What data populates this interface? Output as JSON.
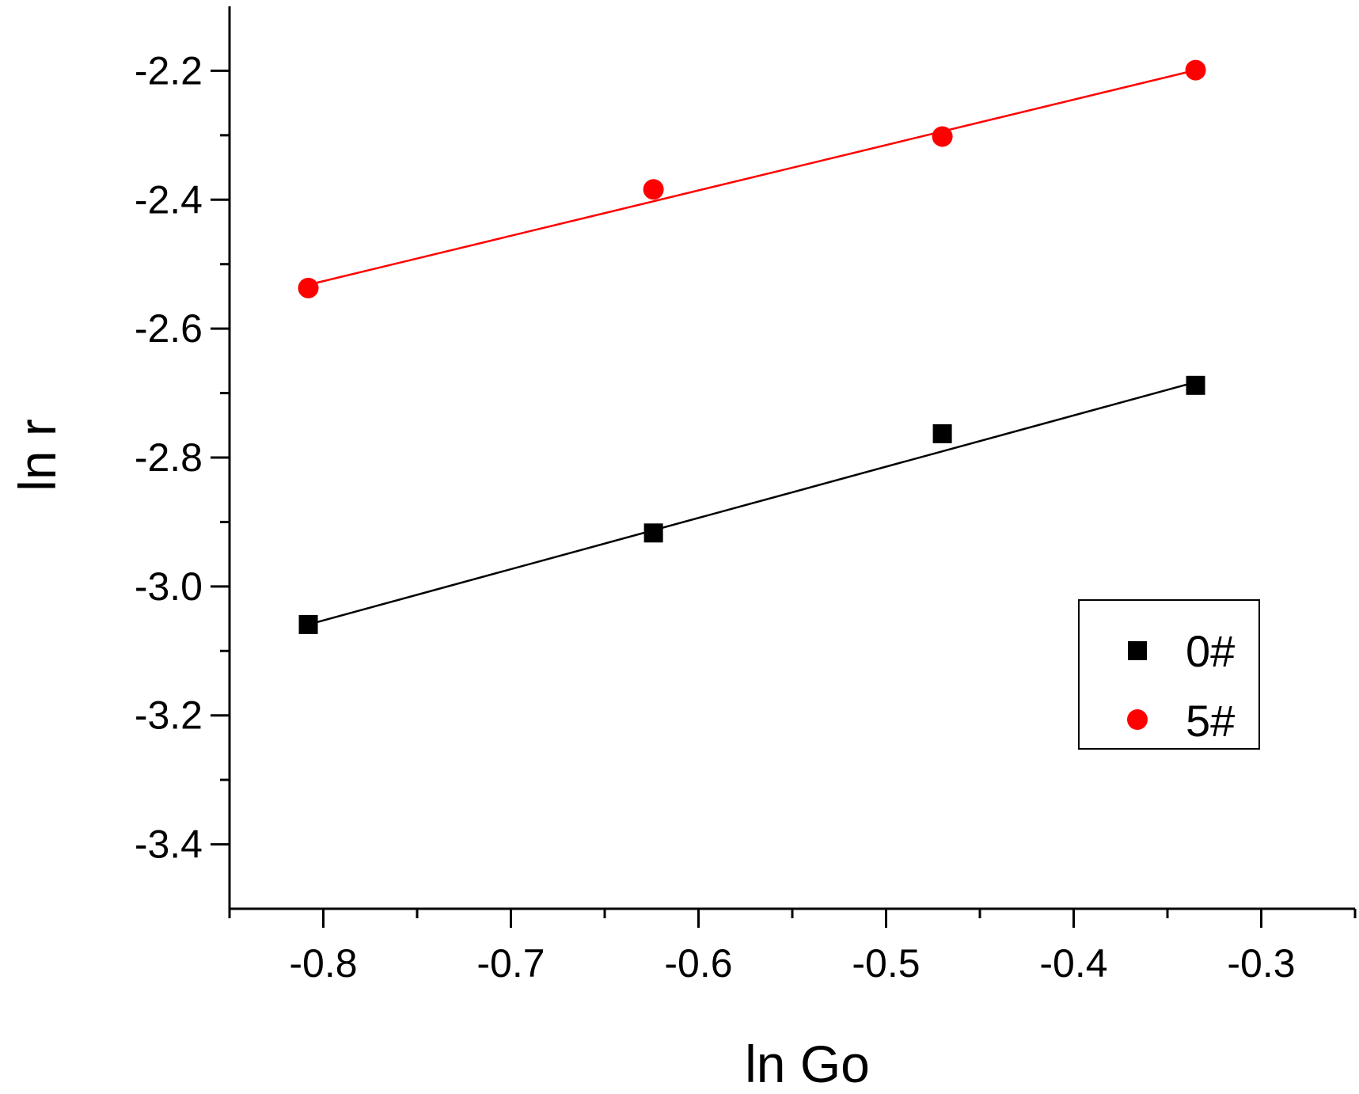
{
  "chart_data": {
    "type": "scatter",
    "title": "",
    "xlabel": "ln Go",
    "ylabel": "ln r",
    "xlim": [
      -0.85,
      -0.25
    ],
    "ylim": [
      -3.5,
      -2.1
    ],
    "xticks": [
      -0.8,
      -0.7,
      -0.6,
      -0.5,
      -0.4,
      -0.3
    ],
    "xtick_labels": [
      "-0.8",
      "-0.7",
      "-0.6",
      "-0.5",
      "-0.4",
      "-0.3"
    ],
    "yticks": [
      -2.2,
      -2.4,
      -2.6,
      -2.8,
      -3.0,
      -3.2,
      -3.4
    ],
    "ytick_labels": [
      "-2.2",
      "-2.4",
      "-2.6",
      "-2.8",
      "-3.0",
      "-3.2",
      "-3.4"
    ],
    "grid": false,
    "legend_position": "lower-right",
    "series": [
      {
        "name": "0#",
        "marker": "square",
        "color": "#000000",
        "x": [
          -0.808,
          -0.624,
          -0.47,
          -0.335
        ],
        "y": [
          -3.059,
          -2.917,
          -2.763,
          -2.688
        ],
        "fit": {
          "x": [
            -0.808,
            -0.335
          ],
          "y": [
            -3.059,
            -2.683
          ]
        }
      },
      {
        "name": "5#",
        "marker": "circle",
        "color": "#ff0000",
        "x": [
          -0.808,
          -0.624,
          -0.47,
          -0.335
        ],
        "y": [
          -2.537,
          -2.384,
          -2.302,
          -2.199
        ],
        "fit": {
          "x": [
            -0.808,
            -0.335
          ],
          "y": [
            -2.532,
            -2.199
          ]
        }
      }
    ]
  }
}
